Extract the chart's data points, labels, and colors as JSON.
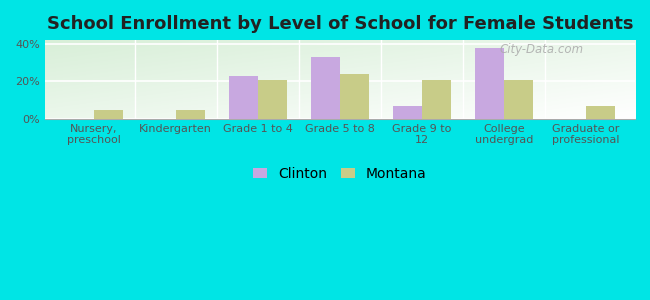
{
  "title": "School Enrollment by Level of School for Female Students",
  "categories": [
    "Nursery,\npreschool",
    "Kindergarten",
    "Grade 1 to 4",
    "Grade 5 to 8",
    "Grade 9 to\n12",
    "College\nundergrad",
    "Graduate or\nprofessional"
  ],
  "clinton_values": [
    0,
    0,
    23,
    33,
    7,
    38,
    0
  ],
  "montana_values": [
    5,
    5,
    21,
    24,
    21,
    21,
    7
  ],
  "clinton_color": "#c8a8e0",
  "montana_color": "#c8cc88",
  "ylim": [
    0,
    42
  ],
  "yticks": [
    0,
    20,
    40
  ],
  "ytick_labels": [
    "0%",
    "20%",
    "40%"
  ],
  "legend_labels": [
    "Clinton",
    "Montana"
  ],
  "background_color": "#00e5e5",
  "plot_bg_top_left": "#d8efd8",
  "plot_bg_bottom_right": "#f8fff8",
  "bar_width": 0.35,
  "title_fontsize": 13,
  "tick_fontsize": 8,
  "legend_fontsize": 10,
  "watermark": "City-Data.com"
}
